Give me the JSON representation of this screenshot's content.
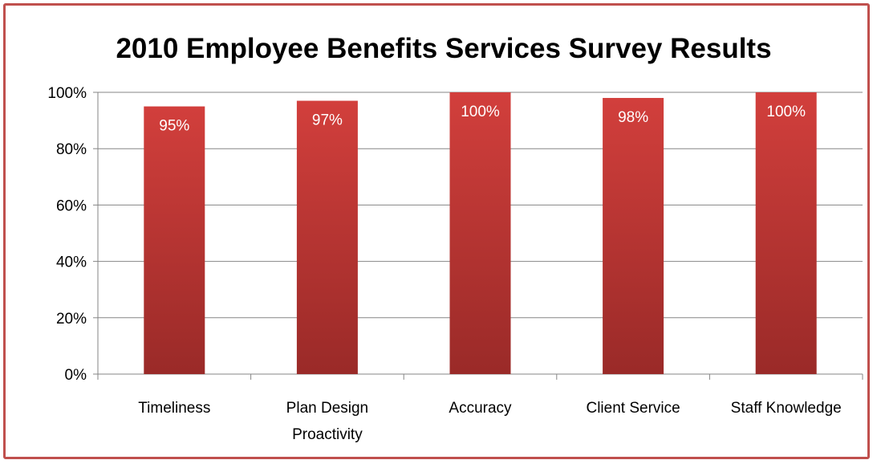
{
  "chart_data": {
    "type": "bar",
    "title": "2010 Employee Benefits Services Survey Results",
    "xlabel": "",
    "ylabel": "",
    "categories": [
      "Timeliness",
      "Plan Design\nProactivity",
      "Accuracy",
      "Client Service",
      "Staff Knowledge"
    ],
    "values": [
      95,
      97,
      100,
      98,
      100
    ],
    "data_labels": [
      "95%",
      "97%",
      "100%",
      "98%",
      "100%"
    ],
    "ylim": [
      0,
      100
    ],
    "yticks": [
      0,
      20,
      40,
      60,
      80,
      100
    ],
    "ytick_labels": [
      "0%",
      "20%",
      "40%",
      "60%",
      "80%",
      "100%"
    ],
    "grid": true,
    "legend": "none",
    "colors": {
      "bar_top": "#d23f3c",
      "bar_bottom": "#9a2a28",
      "frame": "#c0504d",
      "gridline": "#868686"
    }
  }
}
